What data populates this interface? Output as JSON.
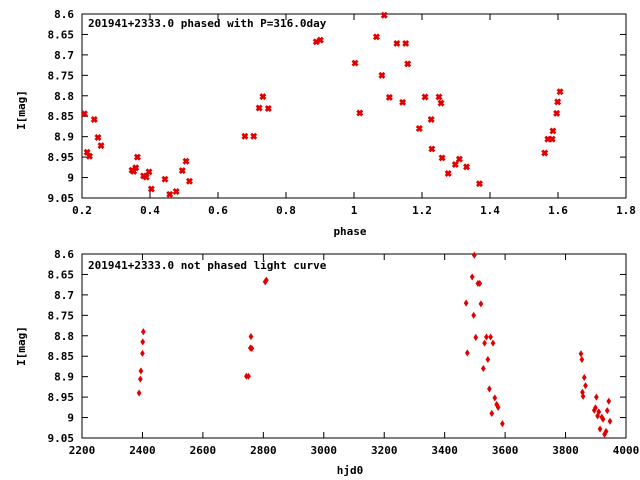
{
  "chart_data": [
    {
      "type": "scatter",
      "title": "201941+2333.0 phased with P=316.0day",
      "xlabel": "phase",
      "ylabel": "I[mag]",
      "xlim": [
        0.2,
        1.8
      ],
      "ylim": [
        8.6,
        9.05
      ],
      "y_inverted": true,
      "x_ticks": [
        0.2,
        0.4,
        0.6,
        0.8,
        1.0,
        1.2,
        1.4,
        1.6,
        1.8
      ],
      "x_tick_labels": [
        "0.2",
        "0.4",
        "0.6",
        "0.8",
        "1",
        "1.2",
        "1.4",
        "1.6",
        "1.8"
      ],
      "y_ticks": [
        8.6,
        8.65,
        8.7,
        8.75,
        8.8,
        8.85,
        8.9,
        8.95,
        9.0,
        9.05
      ],
      "y_tick_labels": [
        "8.6",
        "8.65",
        "8.7",
        "8.75",
        "8.8",
        "8.85",
        "8.9",
        "8.95",
        "9",
        "9.05"
      ],
      "grid": false,
      "marker_color": "#e00000",
      "marker": "cross",
      "points": [
        [
          0.207,
          8.844
        ],
        [
          0.215,
          8.938
        ],
        [
          0.222,
          8.948
        ],
        [
          0.236,
          8.858
        ],
        [
          0.247,
          8.902
        ],
        [
          0.256,
          8.922
        ],
        [
          0.347,
          8.982
        ],
        [
          0.352,
          8.985
        ],
        [
          0.358,
          8.976
        ],
        [
          0.363,
          8.95
        ],
        [
          0.381,
          8.996
        ],
        [
          0.389,
          8.999
        ],
        [
          0.397,
          8.986
        ],
        [
          0.404,
          9.028
        ],
        [
          0.444,
          9.004
        ],
        [
          0.458,
          9.041
        ],
        [
          0.477,
          9.034
        ],
        [
          0.495,
          8.983
        ],
        [
          0.506,
          8.96
        ],
        [
          0.516,
          9.009
        ],
        [
          0.679,
          8.899
        ],
        [
          0.705,
          8.899
        ],
        [
          0.721,
          8.83
        ],
        [
          0.732,
          8.802
        ],
        [
          0.748,
          8.831
        ],
        [
          0.889,
          8.668
        ],
        [
          0.901,
          8.664
        ],
        [
          1.003,
          8.72
        ],
        [
          1.017,
          8.842
        ],
        [
          1.066,
          8.656
        ],
        [
          1.082,
          8.75
        ],
        [
          1.089,
          8.603
        ],
        [
          1.104,
          8.804
        ],
        [
          1.126,
          8.672
        ],
        [
          1.143,
          8.816
        ],
        [
          1.152,
          8.672
        ],
        [
          1.158,
          8.722
        ],
        [
          1.192,
          8.88
        ],
        [
          1.209,
          8.803
        ],
        [
          1.227,
          8.858
        ],
        [
          1.229,
          8.93
        ],
        [
          1.25,
          8.803
        ],
        [
          1.256,
          8.818
        ],
        [
          1.259,
          8.952
        ],
        [
          1.277,
          8.99
        ],
        [
          1.298,
          8.968
        ],
        [
          1.31,
          8.955
        ],
        [
          1.331,
          8.974
        ],
        [
          1.369,
          9.015
        ],
        [
          1.561,
          8.94
        ],
        [
          1.57,
          8.906
        ],
        [
          1.583,
          8.906
        ],
        [
          1.585,
          8.886
        ],
        [
          1.596,
          8.843
        ],
        [
          1.599,
          8.815
        ],
        [
          1.606,
          8.79
        ]
      ]
    },
    {
      "type": "scatter",
      "title": "201941+2333.0 not phased light curve",
      "xlabel": "hjd0",
      "ylabel": "I[mag]",
      "xlim": [
        2200,
        4000
      ],
      "ylim": [
        8.6,
        9.05
      ],
      "y_inverted": true,
      "x_ticks": [
        2200,
        2400,
        2600,
        2800,
        3000,
        3200,
        3400,
        3600,
        3800,
        4000
      ],
      "x_tick_labels": [
        "2200",
        "2400",
        "2600",
        "2800",
        "3000",
        "3200",
        "3400",
        "3600",
        "3800",
        "4000"
      ],
      "y_ticks": [
        8.6,
        8.65,
        8.7,
        8.75,
        8.8,
        8.85,
        8.9,
        8.95,
        9.0,
        9.05
      ],
      "y_tick_labels": [
        "8.6",
        "8.65",
        "8.7",
        "8.75",
        "8.8",
        "8.85",
        "8.9",
        "8.95",
        "9",
        "9.05"
      ],
      "grid": false,
      "marker_color": "#e00000",
      "marker": "diamond",
      "points": [
        [
          2389,
          8.94
        ],
        [
          2393,
          8.906
        ],
        [
          2395,
          8.886
        ],
        [
          2400,
          8.843
        ],
        [
          2401,
          8.815
        ],
        [
          2403,
          8.79
        ],
        [
          2744,
          8.899
        ],
        [
          2751,
          8.899
        ],
        [
          2757,
          8.83
        ],
        [
          2759,
          8.802
        ],
        [
          2762,
          8.831
        ],
        [
          2806,
          8.668
        ],
        [
          2810,
          8.664
        ],
        [
          3471,
          8.72
        ],
        [
          3475,
          8.842
        ],
        [
          3491,
          8.656
        ],
        [
          3496,
          8.75
        ],
        [
          3498,
          8.603
        ],
        [
          3503,
          8.804
        ],
        [
          3510,
          8.672
        ],
        [
          3516,
          8.672
        ],
        [
          3520,
          8.722
        ],
        [
          3528,
          8.88
        ],
        [
          3532,
          8.818
        ],
        [
          3538,
          8.803
        ],
        [
          3543,
          8.858
        ],
        [
          3548,
          8.93
        ],
        [
          3552,
          8.803
        ],
        [
          3556,
          8.99
        ],
        [
          3560,
          8.818
        ],
        [
          3566,
          8.952
        ],
        [
          3572,
          8.968
        ],
        [
          3577,
          8.975
        ],
        [
          3591,
          9.015
        ],
        [
          3851,
          8.844
        ],
        [
          3854,
          8.858
        ],
        [
          3856,
          8.938
        ],
        [
          3858,
          8.948
        ],
        [
          3862,
          8.902
        ],
        [
          3866,
          8.922
        ],
        [
          3895,
          8.982
        ],
        [
          3899,
          8.976
        ],
        [
          3902,
          8.95
        ],
        [
          3906,
          8.996
        ],
        [
          3910,
          8.986
        ],
        [
          3914,
          9.028
        ],
        [
          3920,
          8.999
        ],
        [
          3924,
          9.004
        ],
        [
          3929,
          9.041
        ],
        [
          3934,
          9.034
        ],
        [
          3938,
          8.983
        ],
        [
          3943,
          8.96
        ],
        [
          3947,
          9.009
        ]
      ]
    }
  ]
}
